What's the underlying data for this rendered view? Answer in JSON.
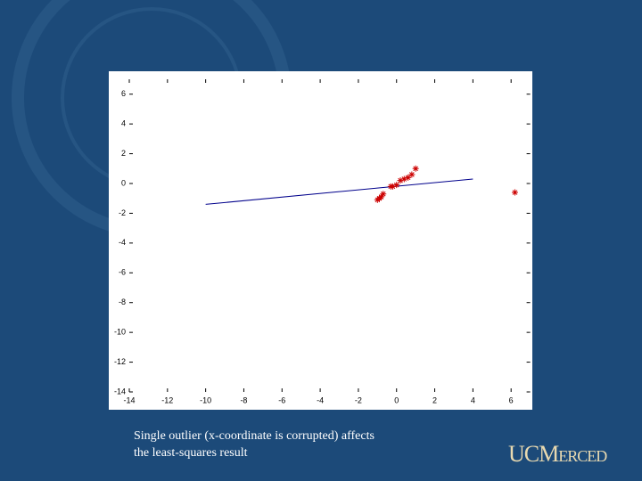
{
  "chart_data": {
    "type": "scatter",
    "xlim": [
      -14,
      7
    ],
    "ylim": [
      -14,
      7
    ],
    "xticks": [
      -14,
      -12,
      -10,
      -8,
      -6,
      -4,
      -2,
      0,
      2,
      4,
      6
    ],
    "yticks": [
      -14,
      -12,
      -10,
      -8,
      -6,
      -4,
      -2,
      0,
      2,
      4,
      6
    ],
    "points": {
      "color": "#cc0000",
      "x": [
        -1.0,
        -0.9,
        -0.8,
        -0.7,
        -0.3,
        -0.2,
        0.0,
        0.2,
        0.4,
        0.6,
        0.8,
        1.0,
        6.2
      ],
      "y": [
        -1.1,
        -1.0,
        -0.9,
        -0.7,
        -0.2,
        -0.2,
        -0.1,
        0.2,
        0.3,
        0.4,
        0.6,
        1.0,
        -0.6
      ]
    },
    "fit_line": {
      "color": "#00008b",
      "x": [
        -10,
        4
      ],
      "y": [
        -1.4,
        0.3
      ]
    }
  },
  "caption": [
    "Single outlier (x-coordinate is corrupted) affects",
    "the least-squares result"
  ],
  "logo": "UCMerced"
}
